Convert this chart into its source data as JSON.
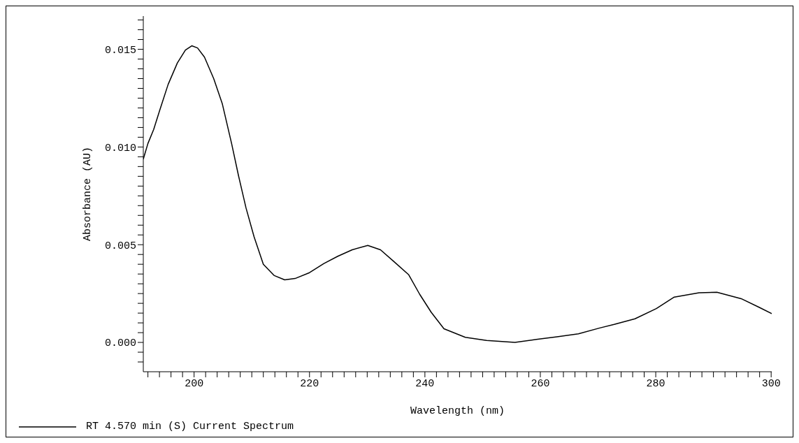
{
  "chart_data": {
    "type": "line",
    "xlabel": "Wavelength (nm)",
    "ylabel": "Absorbance (AU)",
    "xlim": [
      191.2,
      300.1
    ],
    "ylim": [
      -0.0015,
      0.0167
    ],
    "xticks": [
      {
        "value": 192,
        "label": null
      },
      {
        "value": 194,
        "label": null
      },
      {
        "value": 196,
        "label": null
      },
      {
        "value": 198,
        "label": null
      },
      200,
      {
        "value": 202,
        "label": null
      },
      {
        "value": 204,
        "label": null
      },
      {
        "value": 206,
        "label": null
      },
      {
        "value": 208,
        "label": null
      },
      {
        "value": 210,
        "label": null
      },
      {
        "value": 212,
        "label": null
      },
      {
        "value": 214,
        "label": null
      },
      {
        "value": 216,
        "label": null
      },
      {
        "value": 218,
        "label": null
      },
      220,
      {
        "value": 222,
        "label": null
      },
      {
        "value": 224,
        "label": null
      },
      {
        "value": 226,
        "label": null
      },
      {
        "value": 228,
        "label": null
      },
      {
        "value": 230,
        "label": null
      },
      {
        "value": 232,
        "label": null
      },
      {
        "value": 234,
        "label": null
      },
      {
        "value": 236,
        "label": null
      },
      {
        "value": 238,
        "label": null
      },
      240,
      {
        "value": 242,
        "label": null
      },
      {
        "value": 244,
        "label": null
      },
      {
        "value": 246,
        "label": null
      },
      {
        "value": 248,
        "label": null
      },
      {
        "value": 250,
        "label": null
      },
      {
        "value": 252,
        "label": null
      },
      {
        "value": 254,
        "label": null
      },
      {
        "value": 256,
        "label": null
      },
      {
        "value": 258,
        "label": null
      },
      260,
      {
        "value": 262,
        "label": null
      },
      {
        "value": 264,
        "label": null
      },
      {
        "value": 266,
        "label": null
      },
      {
        "value": 268,
        "label": null
      },
      {
        "value": 270,
        "label": null
      },
      {
        "value": 272,
        "label": null
      },
      {
        "value": 274,
        "label": null
      },
      {
        "value": 276,
        "label": null
      },
      {
        "value": 278,
        "label": null
      },
      280,
      {
        "value": 282,
        "label": null
      },
      {
        "value": 284,
        "label": null
      },
      {
        "value": 286,
        "label": null
      },
      {
        "value": 288,
        "label": null
      },
      {
        "value": 290,
        "label": null
      },
      {
        "value": 292,
        "label": null
      },
      {
        "value": 294,
        "label": null
      },
      {
        "value": 296,
        "label": null
      },
      {
        "value": 298,
        "label": null
      },
      300
    ],
    "yticks": [
      {
        "value": -0.001,
        "label": null
      },
      {
        "value": -0.0005,
        "label": null
      },
      {
        "value": 0,
        "label": "0.000"
      },
      {
        "value": 0.0005,
        "label": null
      },
      {
        "value": 0.001,
        "label": null
      },
      {
        "value": 0.0015,
        "label": null
      },
      {
        "value": 0.002,
        "label": null
      },
      {
        "value": 0.0025,
        "label": null
      },
      {
        "value": 0.003,
        "label": null
      },
      {
        "value": 0.0035,
        "label": null
      },
      {
        "value": 0.004,
        "label": null
      },
      {
        "value": 0.0045,
        "label": null
      },
      {
        "value": 0.005,
        "label": "0.005"
      },
      {
        "value": 0.0055,
        "label": null
      },
      {
        "value": 0.006,
        "label": null
      },
      {
        "value": 0.0065,
        "label": null
      },
      {
        "value": 0.007,
        "label": null
      },
      {
        "value": 0.0075,
        "label": null
      },
      {
        "value": 0.008,
        "label": null
      },
      {
        "value": 0.0085,
        "label": null
      },
      {
        "value": 0.009,
        "label": null
      },
      {
        "value": 0.0095,
        "label": null
      },
      {
        "value": 0.01,
        "label": "0.010"
      },
      {
        "value": 0.0105,
        "label": null
      },
      {
        "value": 0.011,
        "label": null
      },
      {
        "value": 0.0115,
        "label": null
      },
      {
        "value": 0.012,
        "label": null
      },
      {
        "value": 0.0125,
        "label": null
      },
      {
        "value": 0.013,
        "label": null
      },
      {
        "value": 0.0135,
        "label": null
      },
      {
        "value": 0.014,
        "label": null
      },
      {
        "value": 0.0145,
        "label": null
      },
      {
        "value": 0.015,
        "label": "0.015"
      },
      {
        "value": 0.0155,
        "label": null
      },
      {
        "value": 0.016,
        "label": null
      },
      {
        "value": 0.0165,
        "label": null
      }
    ],
    "grid": false,
    "legend": "bottom left",
    "marker": "none",
    "line_style": "solid",
    "series": [
      {
        "name": "RT 4.570 min (S) Current Spectrum",
        "color": "#000000",
        "x": [
          191.2,
          192.0,
          193.0,
          194.0,
          195.5,
          197.1,
          198.5,
          199.6,
          200.6,
          201.8,
          203.4,
          204.9,
          206.5,
          207.7,
          209.0,
          210.4,
          212.0,
          213.9,
          215.7,
          217.5,
          220.0,
          222.5,
          224.9,
          227.4,
          230.1,
          232.3,
          234.7,
          237.2,
          239.1,
          241.1,
          243.3,
          247.0,
          250.7,
          255.6,
          259.3,
          262.9,
          266.6,
          270.3,
          272.8,
          276.4,
          280.1,
          283.2,
          287.5,
          290.6,
          294.8,
          297.9,
          300.1
        ],
        "values": [
          0.00938,
          0.01018,
          0.0109,
          0.01184,
          0.0132,
          0.0143,
          0.01496,
          0.01518,
          0.01507,
          0.0146,
          0.0135,
          0.0122,
          0.01018,
          0.00853,
          0.00688,
          0.0054,
          0.004,
          0.00342,
          0.0032,
          0.00327,
          0.00357,
          0.00404,
          0.00441,
          0.00474,
          0.00496,
          0.00474,
          0.00412,
          0.00346,
          0.00246,
          0.00154,
          0.0007,
          0.00026,
          0.0001,
          0,
          0.00015,
          0.00029,
          0.00044,
          0.00074,
          0.00092,
          0.00121,
          0.00173,
          0.00232,
          0.00254,
          0.00257,
          0.00224,
          0.0018,
          0.00147
        ]
      }
    ]
  }
}
